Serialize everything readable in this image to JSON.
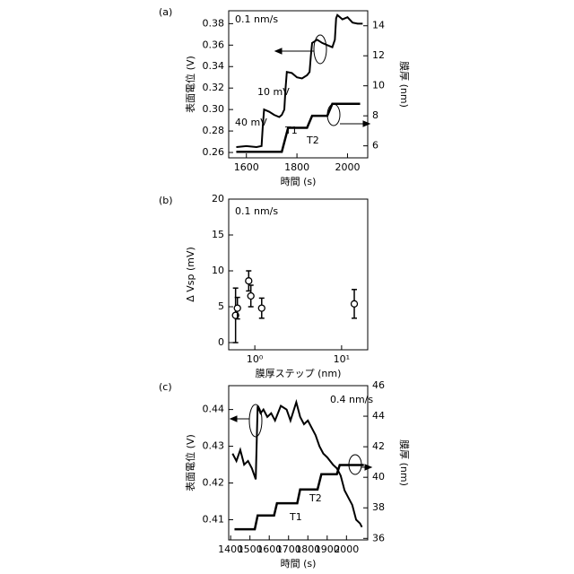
{
  "chart_data": [
    {
      "type": "line",
      "panel_label": "(a)",
      "xlabel": "時間 (s)",
      "ylabel": "表面電位 (V)",
      "y2label": "膜厚 (nm)",
      "annotations": [
        "0.1 nm/s",
        "10 mV",
        "40 mV",
        "T1",
        "T2"
      ],
      "xlim": [
        1530,
        2080
      ],
      "xticks": [
        1600,
        1800,
        2000
      ],
      "ylim": [
        0.255,
        0.392
      ],
      "yticks": [
        0.26,
        0.28,
        {
          "value": 0.3,
          "label": "0.30"
        },
        0.32,
        0.34,
        0.36,
        0.38
      ],
      "y2lim": [
        5.2,
        15.0
      ],
      "y2ticks": [
        6,
        8,
        10,
        12,
        14
      ],
      "series": [
        {
          "color": "#000000",
          "x": [
            1560,
            1600,
            1640,
            1660,
            1665,
            1670,
            1690,
            1710,
            1730,
            1740,
            1750,
            1755,
            1760,
            1780,
            1800,
            1820,
            1840,
            1850,
            1855,
            1860,
            1880,
            1900,
            1920,
            1940,
            1950,
            1955,
            1960,
            1980,
            2000,
            2020,
            2040,
            2060
          ],
          "values": [
            0.265,
            0.266,
            0.265,
            0.266,
            0.285,
            0.3,
            0.298,
            0.295,
            0.293,
            0.295,
            0.3,
            0.32,
            0.335,
            0.334,
            0.33,
            0.329,
            0.332,
            0.335,
            0.35,
            0.362,
            0.365,
            0.362,
            0.36,
            0.358,
            0.365,
            0.385,
            0.388,
            0.384,
            0.386,
            0.381,
            0.38,
            0.38
          ]
        },
        {
          "color": "#000000",
          "axis": "y2",
          "x": [
            1560,
            1740,
            1765,
            1840,
            1860,
            1920,
            1940,
            2050
          ],
          "values": [
            5.6,
            5.6,
            7.2,
            7.2,
            8.0,
            8.0,
            8.8,
            8.8
          ]
        }
      ]
    },
    {
      "type": "scatter",
      "panel_label": "(b)",
      "xlabel": "膜厚ステップ (nm)",
      "ylabel": "Δ Vsp (mV)",
      "xscale": "log",
      "annotations": [
        "0.1 nm/s"
      ],
      "xlim": [
        0.5,
        20
      ],
      "xticks": [
        {
          "value": 1,
          "label": "10⁰"
        },
        {
          "value": 10,
          "label": "10¹"
        }
      ],
      "ylim": [
        -1,
        20
      ],
      "yticks": [
        0,
        5,
        10,
        15,
        20
      ],
      "color": "#000000",
      "x": [
        0.6,
        0.63,
        0.85,
        0.9,
        1.2,
        14
      ],
      "values": [
        3.8,
        4.8,
        8.6,
        6.5,
        4.8,
        5.4
      ],
      "errors": [
        3.8,
        1.5,
        1.4,
        1.5,
        1.4,
        2.0
      ]
    },
    {
      "type": "line",
      "panel_label": "(c)",
      "xlabel": "時間 (s)",
      "ylabel": "表面電位 (V)",
      "y2label": "膜厚 (nm)",
      "annotations": [
        "0.4 nm/s",
        "T1",
        "T2"
      ],
      "xlim": [
        1390,
        2110
      ],
      "xticks": [
        1400,
        1500,
        1600,
        1700,
        1800,
        1900,
        2000
      ],
      "ylim": [
        0.4045,
        0.4465
      ],
      "yticks": [
        0.41,
        0.42,
        0.43,
        0.44
      ],
      "y2lim": [
        35.9,
        46.0
      ],
      "y2ticks": [
        36,
        38,
        40,
        42,
        44,
        46
      ],
      "series": [
        {
          "color": "#000000",
          "x": [
            1410,
            1430,
            1450,
            1470,
            1490,
            1510,
            1530,
            1540,
            1555,
            1570,
            1590,
            1610,
            1630,
            1660,
            1690,
            1710,
            1740,
            1760,
            1780,
            1800,
            1820,
            1840,
            1860,
            1880,
            1900,
            1930,
            1950,
            1970,
            1990,
            2010,
            2030,
            2050,
            2070,
            2080
          ],
          "values": [
            0.428,
            0.426,
            0.429,
            0.425,
            0.426,
            0.424,
            0.421,
            0.441,
            0.439,
            0.44,
            0.438,
            0.439,
            0.437,
            0.441,
            0.44,
            0.437,
            0.442,
            0.438,
            0.436,
            0.437,
            0.435,
            0.433,
            0.43,
            0.428,
            0.427,
            0.425,
            0.424,
            0.422,
            0.418,
            0.416,
            0.414,
            0.41,
            0.409,
            0.408
          ]
        },
        {
          "color": "#000000",
          "axis": "y2",
          "x": [
            1420,
            1525,
            1540,
            1625,
            1640,
            1745,
            1760,
            1850,
            1870,
            1950,
            1965,
            2090
          ],
          "values": [
            36.6,
            36.6,
            37.5,
            37.5,
            38.3,
            38.3,
            39.2,
            39.2,
            40.2,
            40.2,
            40.8,
            40.8
          ]
        }
      ]
    }
  ]
}
